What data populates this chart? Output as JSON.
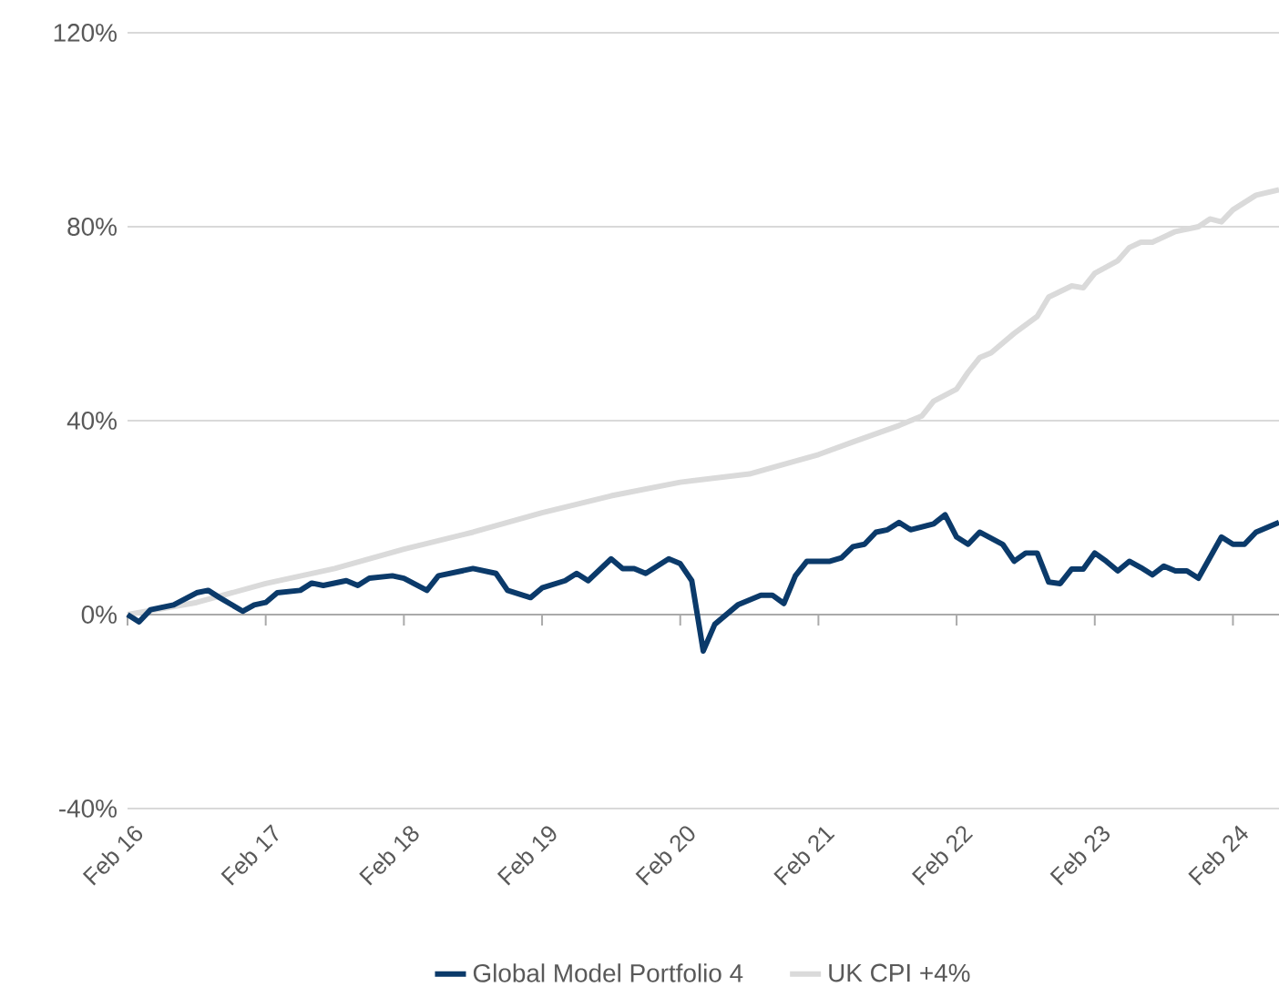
{
  "chart_data": {
    "type": "line",
    "xlim": [
      "2016-02",
      "2024-06"
    ],
    "xticks": [
      {
        "value": "2016-02",
        "label": "Feb 16"
      },
      {
        "value": "2017-02",
        "label": "Feb 17"
      },
      {
        "value": "2018-02",
        "label": "Feb 18"
      },
      {
        "value": "2019-02",
        "label": "Feb 19"
      },
      {
        "value": "2020-02",
        "label": "Feb 20"
      },
      {
        "value": "2021-02",
        "label": "Feb 21"
      },
      {
        "value": "2022-02",
        "label": "Feb 22"
      },
      {
        "value": "2023-02",
        "label": "Feb 23"
      },
      {
        "value": "2024-02",
        "label": "Feb 24"
      }
    ],
    "ylim": [
      -40,
      120
    ],
    "yticks": [
      {
        "value": -40,
        "label": "-40%"
      },
      {
        "value": 0,
        "label": "0%"
      },
      {
        "value": 40,
        "label": "40%"
      },
      {
        "value": 80,
        "label": "80%"
      },
      {
        "value": 120,
        "label": "120%"
      }
    ],
    "grid": "y",
    "legend": "bottom",
    "marker": "none",
    "line_style": "solid",
    "series": [
      {
        "name": "Global Model Portfolio 4",
        "color": "#0b3a6a",
        "x": [
          "2016-02",
          "2016-03",
          "2016-04",
          "2016-06",
          "2016-08",
          "2016-09",
          "2016-10",
          "2016-12",
          "2017-01",
          "2017-02",
          "2017-03",
          "2017-05",
          "2017-06",
          "2017-07",
          "2017-09",
          "2017-10",
          "2017-11",
          "2018-01",
          "2018-02",
          "2018-04",
          "2018-05",
          "2018-08",
          "2018-10",
          "2018-11",
          "2019-01",
          "2019-02",
          "2019-04",
          "2019-05",
          "2019-06",
          "2019-08",
          "2019-09",
          "2019-10",
          "2019-11",
          "2020-01",
          "2020-02",
          "2020-03",
          "2020-04",
          "2020-05",
          "2020-07",
          "2020-09",
          "2020-10",
          "2020-11",
          "2020-12",
          "2021-01",
          "2021-03",
          "2021-04",
          "2021-05",
          "2021-06",
          "2021-07",
          "2021-08",
          "2021-09",
          "2021-10",
          "2021-12",
          "2022-01",
          "2022-02",
          "2022-03",
          "2022-04",
          "2022-06",
          "2022-07",
          "2022-08",
          "2022-09",
          "2022-10",
          "2022-11",
          "2022-12",
          "2023-01",
          "2023-02",
          "2023-03",
          "2023-04",
          "2023-05",
          "2023-06",
          "2023-07",
          "2023-08",
          "2023-09",
          "2023-10",
          "2023-11",
          "2024-01",
          "2024-02",
          "2024-03",
          "2024-04",
          "2024-05",
          "2024-06"
        ],
        "values": [
          0,
          -1.5,
          1,
          2,
          4.5,
          5,
          3.5,
          0.7,
          2,
          2.5,
          4.5,
          5,
          6.5,
          6,
          7,
          6,
          7.5,
          8,
          7.5,
          5,
          8,
          9.5,
          8.5,
          5,
          3.5,
          5.5,
          7,
          8.5,
          7,
          11.5,
          9.5,
          9.5,
          8.5,
          11.5,
          10.5,
          7,
          -7.5,
          -2,
          2,
          4,
          4,
          2.3,
          8,
          11,
          11,
          11.7,
          14,
          14.5,
          17,
          17.5,
          19,
          17.5,
          18.7,
          20.6,
          16,
          14.5,
          17,
          14.5,
          11,
          12.7,
          12.7,
          6.7,
          6.4,
          9.4,
          9.4,
          12.7,
          11,
          9,
          11,
          9.7,
          8.2,
          10,
          9,
          9,
          7.5,
          16,
          14.5,
          14.5,
          17,
          18,
          19
        ]
      },
      {
        "name": "UK CPI +4%",
        "color": "#dadada",
        "x": [
          "2016-02",
          "2016-08",
          "2017-02",
          "2017-08",
          "2018-02",
          "2018-08",
          "2019-02",
          "2019-08",
          "2020-02",
          "2020-08",
          "2021-02",
          "2021-05",
          "2021-09",
          "2021-11",
          "2021-12",
          "2022-02",
          "2022-03",
          "2022-04",
          "2022-05",
          "2022-07",
          "2022-09",
          "2022-10",
          "2022-12",
          "2023-01",
          "2023-02",
          "2023-04",
          "2023-05",
          "2023-06",
          "2023-07",
          "2023-09",
          "2023-11",
          "2023-12",
          "2024-01",
          "2024-02",
          "2024-04",
          "2024-06"
        ],
        "values": [
          0,
          2.5,
          6.4,
          9.5,
          13.5,
          17,
          21,
          24.5,
          27.3,
          29,
          33,
          35.6,
          39,
          41,
          44,
          46.5,
          50,
          53,
          54,
          58,
          61.5,
          65.5,
          67.8,
          67.4,
          70.4,
          73,
          75.7,
          76.8,
          76.8,
          79,
          80,
          81.6,
          81,
          83.5,
          86.5,
          87.6
        ]
      }
    ]
  }
}
